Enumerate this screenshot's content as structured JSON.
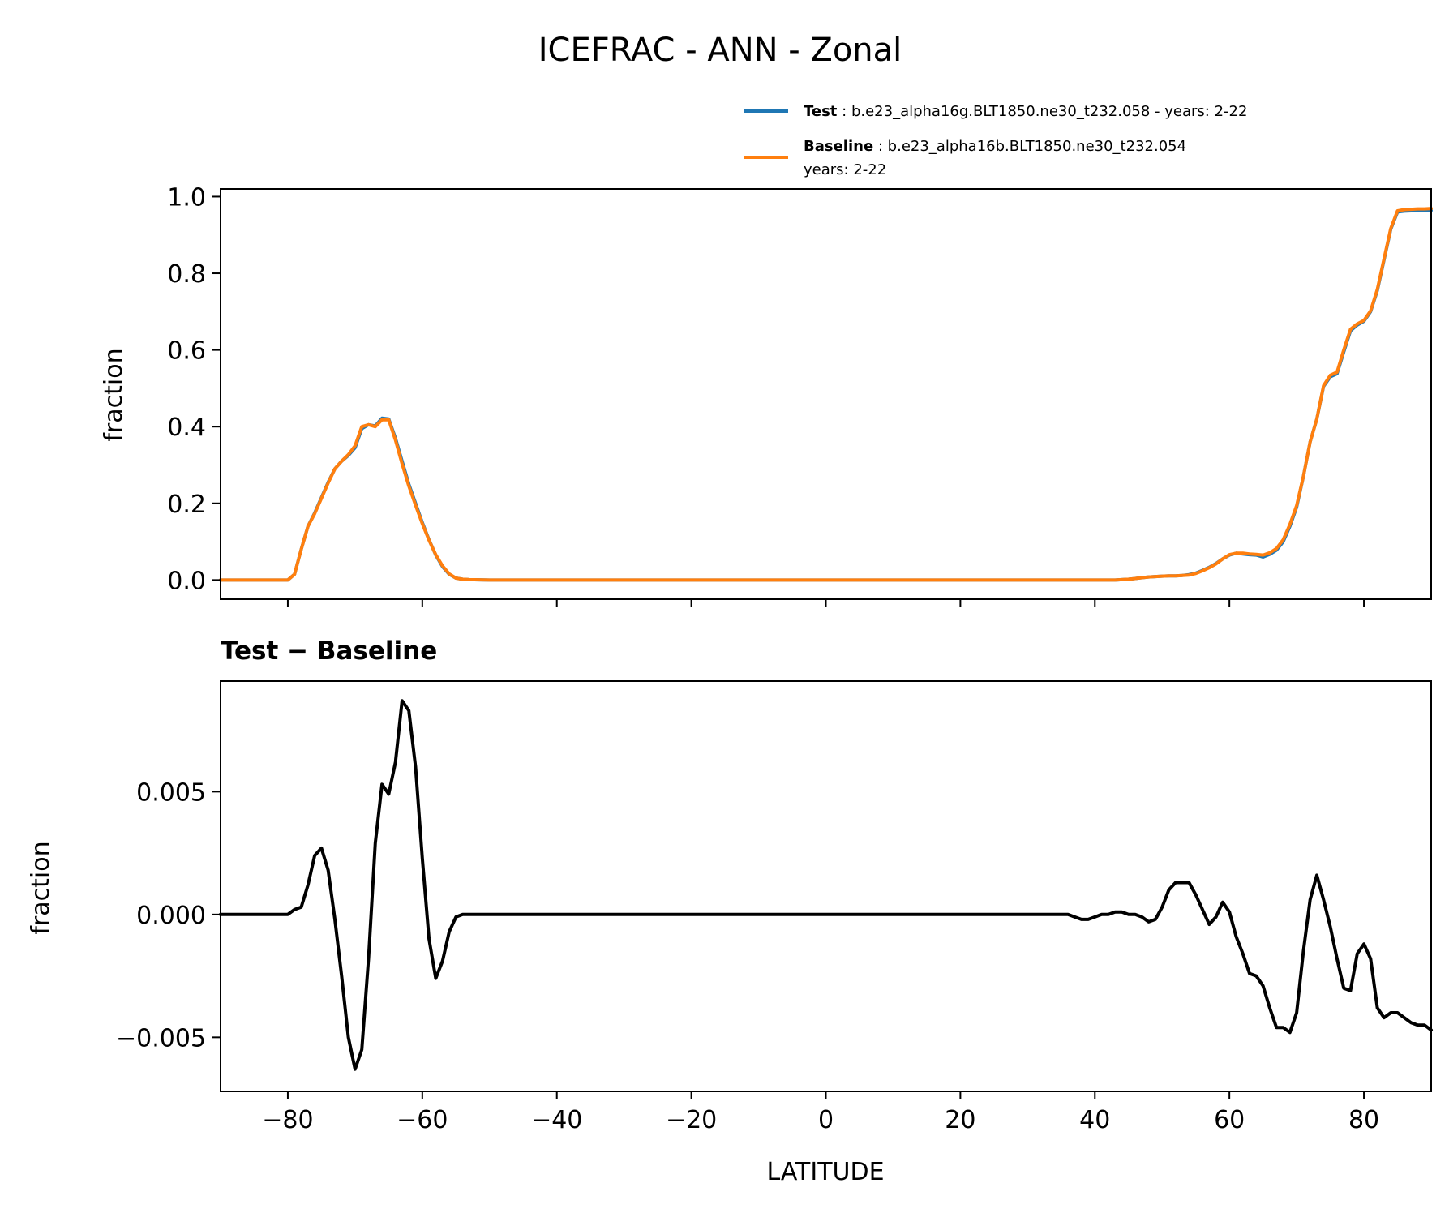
{
  "title": "ICEFRAC - ANN - Zonal",
  "legend": {
    "items": [
      {
        "name": "Test",
        "color": "#1f77b4",
        "lines": [
          "b.e23_alpha16g.BLT1850.ne30_t232.058 - years: 2-22"
        ]
      },
      {
        "name": "Baseline",
        "color": "#ff7f0e",
        "lines": [
          "b.e23_alpha16b.BLT1850.ne30_t232.054",
          "years: 2-22"
        ]
      }
    ]
  },
  "chart_data": [
    {
      "type": "line",
      "ylabel": "fraction",
      "xlim": [
        -90,
        90
      ],
      "ylim": [
        -0.05,
        1.02
      ],
      "yticks": [
        "0.0",
        "0.2",
        "0.4",
        "0.6",
        "0.8",
        "1.0"
      ],
      "ytick_values": [
        0,
        0.2,
        0.4,
        0.6,
        0.8,
        1.0
      ],
      "xticks": [
        -80,
        -60,
        -40,
        -20,
        0,
        20,
        40,
        60,
        80
      ],
      "series": [
        {
          "name": "Test",
          "color": "#1f77b4",
          "x": [
            -90,
            -80,
            -79,
            -78,
            -77,
            -76,
            -75,
            -74,
            -73,
            -72,
            -71,
            -70,
            -69,
            -68,
            -67,
            -66,
            -65,
            -64,
            -63,
            -62,
            -61,
            -60,
            -59,
            -58,
            -57,
            -56,
            -55,
            -54,
            -53,
            -50,
            0,
            30,
            36,
            40,
            43,
            44,
            45,
            46,
            47,
            48,
            49,
            50,
            51,
            52,
            53,
            54,
            55,
            56,
            57,
            58,
            59,
            60,
            61,
            62,
            63,
            64,
            65,
            66,
            67,
            68,
            69,
            70,
            71,
            72,
            73,
            74,
            75,
            76,
            77,
            78,
            79,
            80,
            81,
            82,
            83,
            84,
            85,
            86,
            87,
            88,
            89,
            90
          ],
          "y": [
            0,
            0,
            0.015,
            0.08,
            0.14,
            0.175,
            0.215,
            0.255,
            0.29,
            0.31,
            0.325,
            0.345,
            0.395,
            0.405,
            0.402,
            0.422,
            0.42,
            0.37,
            0.31,
            0.25,
            0.2,
            0.15,
            0.105,
            0.065,
            0.035,
            0.015,
            0.005,
            0.002,
            0.001,
            0,
            0,
            0,
            0,
            0,
            0,
            0.001,
            0.002,
            0.004,
            0.006,
            0.008,
            0.009,
            0.01,
            0.011,
            0.011,
            0.012,
            0.014,
            0.018,
            0.025,
            0.033,
            0.043,
            0.055,
            0.065,
            0.07,
            0.068,
            0.066,
            0.065,
            0.06,
            0.067,
            0.078,
            0.1,
            0.14,
            0.19,
            0.27,
            0.36,
            0.42,
            0.505,
            0.53,
            0.538,
            0.595,
            0.65,
            0.665,
            0.675,
            0.7,
            0.755,
            0.835,
            0.915,
            0.96,
            0.962,
            0.963,
            0.964,
            0.964,
            0.964
          ]
        },
        {
          "name": "Baseline",
          "color": "#ff7f0e",
          "x": [
            -90,
            -80,
            -79,
            -78,
            -77,
            -76,
            -75,
            -74,
            -73,
            -72,
            -71,
            -70,
            -69,
            -68,
            -67,
            -66,
            -65,
            -64,
            -63,
            -62,
            -61,
            -60,
            -59,
            -58,
            -57,
            -56,
            -55,
            -54,
            -53,
            -50,
            0,
            30,
            36,
            40,
            43,
            44,
            45,
            46,
            47,
            48,
            49,
            50,
            51,
            52,
            53,
            54,
            55,
            56,
            57,
            58,
            59,
            60,
            61,
            62,
            63,
            64,
            65,
            66,
            67,
            68,
            69,
            70,
            71,
            72,
            73,
            74,
            75,
            76,
            77,
            78,
            79,
            80,
            81,
            82,
            83,
            84,
            85,
            86,
            87,
            88,
            89,
            90
          ],
          "y": [
            0,
            0,
            0.015,
            0.08,
            0.14,
            0.173,
            0.213,
            0.253,
            0.29,
            0.31,
            0.327,
            0.35,
            0.4,
            0.405,
            0.4,
            0.418,
            0.418,
            0.365,
            0.303,
            0.245,
            0.195,
            0.147,
            0.104,
            0.066,
            0.037,
            0.016,
            0.005,
            0.002,
            0.001,
            0,
            0,
            0,
            0,
            0,
            0,
            0.001,
            0.002,
            0.004,
            0.006,
            0.008,
            0.009,
            0.01,
            0.011,
            0.011,
            0.012,
            0.013,
            0.017,
            0.024,
            0.032,
            0.042,
            0.055,
            0.066,
            0.07,
            0.07,
            0.068,
            0.067,
            0.065,
            0.071,
            0.082,
            0.105,
            0.145,
            0.194,
            0.27,
            0.36,
            0.42,
            0.507,
            0.534,
            0.542,
            0.6,
            0.654,
            0.668,
            0.677,
            0.702,
            0.758,
            0.838,
            0.917,
            0.963,
            0.966,
            0.967,
            0.968,
            0.968,
            0.969
          ]
        }
      ]
    },
    {
      "type": "line",
      "title": "Test − Baseline",
      "ylabel": "fraction",
      "xlabel": "LATITUDE",
      "xlim": [
        -90,
        90
      ],
      "ylim": [
        -0.0072,
        0.0095
      ],
      "yticks": [
        "0.005",
        "0.000",
        "−0.005"
      ],
      "ytick_values": [
        0.005,
        0,
        -0.005
      ],
      "xticks": [
        "−80",
        "−60",
        "−40",
        "−20",
        "0",
        "20",
        "40",
        "60",
        "80"
      ],
      "xtick_values": [
        -80,
        -60,
        -40,
        -20,
        0,
        20,
        40,
        60,
        80
      ],
      "series": [
        {
          "name": "Test − Baseline",
          "color": "#000000",
          "x": [
            -90,
            -80,
            -79,
            -78,
            -77,
            -76,
            -75,
            -74,
            -73,
            -72,
            -71,
            -70,
            -69,
            -68,
            -67,
            -66,
            -65,
            -64,
            -63,
            -62,
            -61,
            -60,
            -59,
            -58,
            -57,
            -56,
            -55,
            -54,
            -53,
            -50,
            0,
            36,
            37,
            38,
            39,
            40,
            41,
            42,
            43,
            44,
            45,
            46,
            47,
            48,
            49,
            50,
            51,
            52,
            53,
            54,
            55,
            56,
            57,
            58,
            59,
            60,
            61,
            62,
            63,
            64,
            65,
            66,
            67,
            68,
            69,
            70,
            71,
            72,
            73,
            74,
            75,
            76,
            77,
            78,
            79,
            80,
            81,
            82,
            83,
            84,
            85,
            86,
            87,
            88,
            89,
            90
          ],
          "y": [
            0,
            0,
            0.0002,
            0.0003,
            0.0012,
            0.0024,
            0.0027,
            0.0018,
            -0.0002,
            -0.0025,
            -0.005,
            -0.0063,
            -0.0055,
            -0.0018,
            0.0029,
            0.0053,
            0.0049,
            0.0062,
            0.0087,
            0.0083,
            0.006,
            0.0023,
            -0.001,
            -0.0026,
            -0.0019,
            -0.0007,
            -0.0001,
            0,
            0,
            0,
            0,
            0,
            -0.0001,
            -0.0002,
            -0.0002,
            -0.0001,
            0,
            0,
            0.0001,
            0.0001,
            0,
            0,
            -0.0001,
            -0.0003,
            -0.0002,
            0.0003,
            0.001,
            0.0013,
            0.0013,
            0.0013,
            0.0008,
            0.0002,
            -0.0004,
            -0.0001,
            0.0005,
            0.0001,
            -0.0009,
            -0.0016,
            -0.0024,
            -0.0025,
            -0.0029,
            -0.0038,
            -0.0046,
            -0.0046,
            -0.0048,
            -0.004,
            -0.0015,
            0.0006,
            0.0016,
            0.0006,
            -0.0005,
            -0.0018,
            -0.003,
            -0.0031,
            -0.0016,
            -0.0012,
            -0.0018,
            -0.0038,
            -0.0042,
            -0.004,
            -0.004,
            -0.0042,
            -0.0044,
            -0.0045,
            -0.0045,
            -0.0047
          ]
        }
      ]
    }
  ]
}
